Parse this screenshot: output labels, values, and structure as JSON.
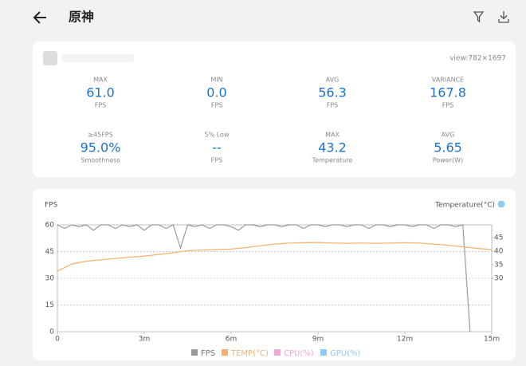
{
  "header": {
    "title": "原神"
  },
  "summary": {
    "view": "view:782×1697",
    "stats": [
      {
        "label": "MAX",
        "value": "61.0",
        "unit": "FPS"
      },
      {
        "label": "MIN",
        "value": "0.0",
        "unit": "FPS"
      },
      {
        "label": "AVG",
        "value": "56.3",
        "unit": "FPS"
      },
      {
        "label": "VARIANCE",
        "value": "167.8",
        "unit": "FPS"
      },
      {
        "label": "≥45FPS",
        "value": "95.0%",
        "unit": "Smoothness"
      },
      {
        "label": "5% Low",
        "value": "--",
        "unit": "FPS"
      },
      {
        "label": "MAX",
        "value": "43.2",
        "unit": "Temperature"
      },
      {
        "label": "AVG",
        "value": "5.65",
        "unit": "Power(W)"
      }
    ]
  },
  "chart_data": {
    "type": "line",
    "ylabel": "FPS",
    "y2label": "Temperature(°C)",
    "xlim": [
      0,
      15
    ],
    "xticks": [
      0,
      {
        "value": 3,
        "label": "3m"
      },
      {
        "value": 6,
        "label": "6m"
      },
      {
        "value": 9,
        "label": "9m"
      },
      {
        "value": 12,
        "label": "12m"
      },
      {
        "value": 15,
        "label": "15m"
      }
    ],
    "ylim": [
      0,
      60
    ],
    "yticks": [
      0,
      15,
      30,
      45,
      60
    ],
    "y2lim": [
      10.3,
      49.7
    ],
    "y2ticks": [
      30,
      35,
      40,
      45
    ],
    "grid": true,
    "series": [
      {
        "name": "FPS",
        "color": "#9a9a9a",
        "x": [
          0,
          0.25,
          0.5,
          0.75,
          1,
          1.25,
          1.5,
          1.75,
          2,
          2.25,
          2.5,
          2.75,
          3,
          3.25,
          3.5,
          3.75,
          4,
          4.25,
          4.5,
          4.75,
          5,
          5.25,
          5.5,
          5.75,
          6,
          6.25,
          6.5,
          6.75,
          7,
          7.25,
          7.5,
          7.75,
          8,
          8.25,
          8.5,
          8.75,
          9,
          9.25,
          9.5,
          9.75,
          10,
          10.25,
          10.5,
          10.75,
          11,
          11.25,
          11.5,
          11.75,
          12,
          12.25,
          12.5,
          12.75,
          13,
          13.25,
          13.5,
          13.75,
          14,
          14.25
        ],
        "values": [
          60,
          58,
          60,
          59,
          60,
          57,
          60,
          60,
          58,
          60,
          59,
          60,
          57,
          60,
          60,
          58,
          60,
          47,
          60,
          59,
          60,
          58,
          60,
          60,
          59,
          57,
          60,
          60,
          59,
          60,
          60,
          59,
          60,
          60,
          58,
          60,
          60,
          59,
          60,
          60,
          59,
          60,
          60,
          58,
          60,
          60,
          59,
          60,
          60,
          59,
          60,
          60,
          58,
          60,
          60,
          59,
          60,
          0
        ]
      },
      {
        "name": "TEMP(°C)",
        "color": "#f5b06e",
        "axis": "y2",
        "x": [
          0,
          0.5,
          1,
          1.5,
          2,
          2.5,
          3,
          3.5,
          4,
          4.5,
          5,
          5.5,
          6,
          6.5,
          7,
          7.5,
          8,
          8.5,
          9,
          9.5,
          10,
          10.5,
          11,
          11.5,
          12,
          12.5,
          13,
          13.5,
          14,
          14.5,
          15
        ],
        "values": [
          32.6,
          35.3,
          36.3,
          36.8,
          37.3,
          37.8,
          38.2,
          38.8,
          39.4,
          40.2,
          40.4,
          40.6,
          40.8,
          41.3,
          42,
          42.6,
          43,
          43.1,
          43.2,
          43,
          42.9,
          43,
          42.9,
          43,
          43.1,
          43,
          42.6,
          42.2,
          41.6,
          41,
          40.6
        ]
      },
      {
        "name": "CPU(%)",
        "color": "#f2a7d6"
      },
      {
        "name": "GPU(%)",
        "color": "#8ecbf2"
      }
    ]
  }
}
